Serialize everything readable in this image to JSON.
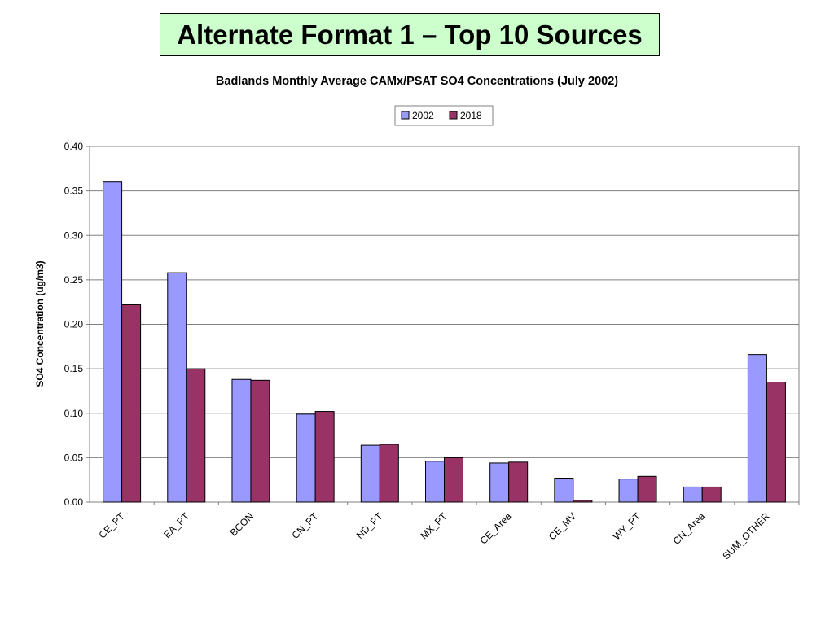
{
  "slide": {
    "title": "Alternate Format 1 – Top 10 Sources"
  },
  "chart_data": {
    "type": "bar",
    "title": "Badlands Monthly Average CAMx/PSAT SO4 Concentrations (July 2002)",
    "xlabel": "",
    "ylabel": "SO4 Concentration (ug/m3)",
    "ylim": [
      0,
      0.4
    ],
    "yticks": [
      "0.00",
      "0.05",
      "0.10",
      "0.15",
      "0.20",
      "0.25",
      "0.30",
      "0.35",
      "0.40"
    ],
    "grid": true,
    "legend_position": "top-center",
    "categories": [
      "CE_PT",
      "EA_PT",
      "BCON",
      "CN_PT",
      "ND_PT",
      "MX_PT",
      "CE_Area",
      "CE_MV",
      "WY_PT",
      "CN_Area",
      "SUM_OTHER"
    ],
    "series": [
      {
        "name": "2002",
        "color": "#9999ff",
        "values": [
          0.36,
          0.258,
          0.138,
          0.099,
          0.064,
          0.046,
          0.044,
          0.027,
          0.026,
          0.017,
          0.166
        ]
      },
      {
        "name": "2018",
        "color": "#993366",
        "values": [
          0.222,
          0.15,
          0.137,
          0.102,
          0.065,
          0.05,
          0.045,
          0.002,
          0.029,
          0.017,
          0.135
        ]
      }
    ]
  }
}
